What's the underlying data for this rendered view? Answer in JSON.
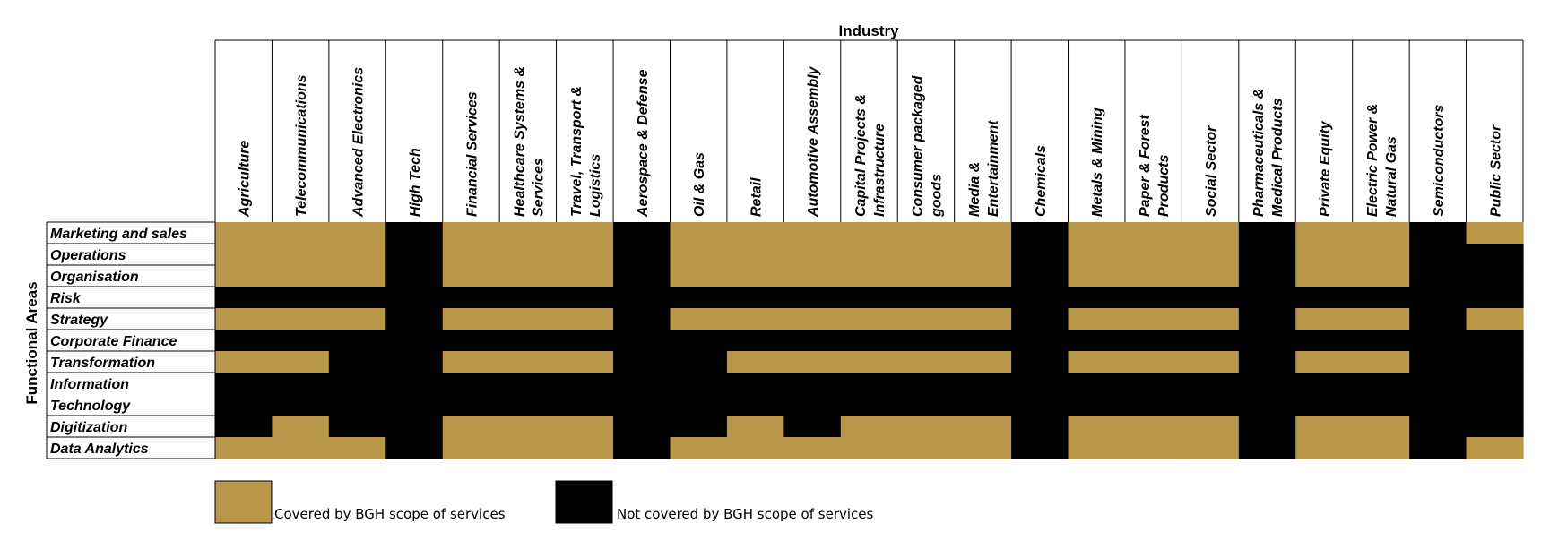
{
  "chart_data": {
    "type": "heatmap",
    "title": "Industry",
    "ylabel": "Functional Areas",
    "colors": {
      "covered": "#b8964a",
      "not_covered": "#000000"
    },
    "industries": [
      [
        "Agriculture"
      ],
      [
        "Telecommunications"
      ],
      [
        "Advanced Electronics"
      ],
      [
        "High Tech"
      ],
      [
        "Financial Services"
      ],
      [
        "Healthcare Systems &",
        "Services"
      ],
      [
        "Travel, Transport &",
        "Logistics"
      ],
      [
        "Aerospace & Defense"
      ],
      [
        "Oil & Gas"
      ],
      [
        "Retail"
      ],
      [
        "Automotive Assembly"
      ],
      [
        "Capital Projects &",
        "Infrastructure"
      ],
      [
        "Consumer packaged",
        "goods"
      ],
      [
        "Media &",
        "Entertainment"
      ],
      [
        "Chemicals"
      ],
      [
        "Metals & Mining"
      ],
      [
        "Paper & Forest",
        "Products"
      ],
      [
        "Social Sector"
      ],
      [
        "Pharmaceuticals &",
        "Medical Products"
      ],
      [
        "Private Equity"
      ],
      [
        "Electric Power &",
        "Natural Gas"
      ],
      [
        "Semiconductors"
      ],
      [
        "Public Sector"
      ]
    ],
    "functional_areas": [
      [
        "Marketing and sales"
      ],
      [
        "Operations"
      ],
      [
        "Organisation"
      ],
      [
        "Risk"
      ],
      [
        "Strategy"
      ],
      [
        "Corporate Finance"
      ],
      [
        "Transformation"
      ],
      [
        "Information",
        "Technology"
      ],
      [
        "Digitization"
      ],
      [
        "Data Analytics"
      ]
    ],
    "values": [
      [
        1,
        1,
        1,
        0,
        1,
        1,
        1,
        0,
        1,
        1,
        1,
        1,
        1,
        1,
        0,
        1,
        1,
        1,
        0,
        1,
        1,
        0,
        1
      ],
      [
        1,
        1,
        1,
        0,
        1,
        1,
        1,
        0,
        1,
        1,
        1,
        1,
        1,
        1,
        0,
        1,
        1,
        1,
        0,
        1,
        1,
        0,
        0
      ],
      [
        1,
        1,
        1,
        0,
        1,
        1,
        1,
        0,
        1,
        1,
        1,
        1,
        1,
        1,
        0,
        1,
        1,
        1,
        0,
        1,
        1,
        0,
        0
      ],
      [
        0,
        0,
        0,
        0,
        0,
        0,
        0,
        0,
        0,
        0,
        0,
        0,
        0,
        0,
        0,
        0,
        0,
        0,
        0,
        0,
        0,
        0,
        0
      ],
      [
        1,
        1,
        1,
        0,
        1,
        1,
        1,
        0,
        1,
        1,
        1,
        1,
        1,
        1,
        0,
        1,
        1,
        1,
        0,
        1,
        1,
        0,
        1
      ],
      [
        0,
        0,
        0,
        0,
        0,
        0,
        0,
        0,
        0,
        0,
        0,
        0,
        0,
        0,
        0,
        0,
        0,
        0,
        0,
        0,
        0,
        0,
        0
      ],
      [
        1,
        1,
        0,
        0,
        1,
        1,
        1,
        0,
        0,
        1,
        1,
        1,
        1,
        1,
        0,
        1,
        1,
        1,
        0,
        1,
        1,
        0,
        0
      ],
      [
        0,
        0,
        0,
        0,
        0,
        0,
        0,
        0,
        0,
        0,
        0,
        0,
        0,
        0,
        0,
        0,
        0,
        0,
        0,
        0,
        0,
        0,
        0
      ],
      [
        0,
        1,
        0,
        0,
        1,
        1,
        1,
        0,
        0,
        1,
        0,
        1,
        1,
        1,
        0,
        1,
        1,
        1,
        0,
        1,
        1,
        0,
        0
      ],
      [
        1,
        1,
        1,
        0,
        1,
        1,
        1,
        0,
        1,
        1,
        1,
        1,
        1,
        1,
        0,
        1,
        1,
        1,
        0,
        1,
        1,
        0,
        1
      ]
    ],
    "legend": [
      {
        "key": "covered",
        "label": "Covered by BGH scope of services"
      },
      {
        "key": "not_covered",
        "label": "Not covered by BGH scope of services"
      }
    ]
  }
}
